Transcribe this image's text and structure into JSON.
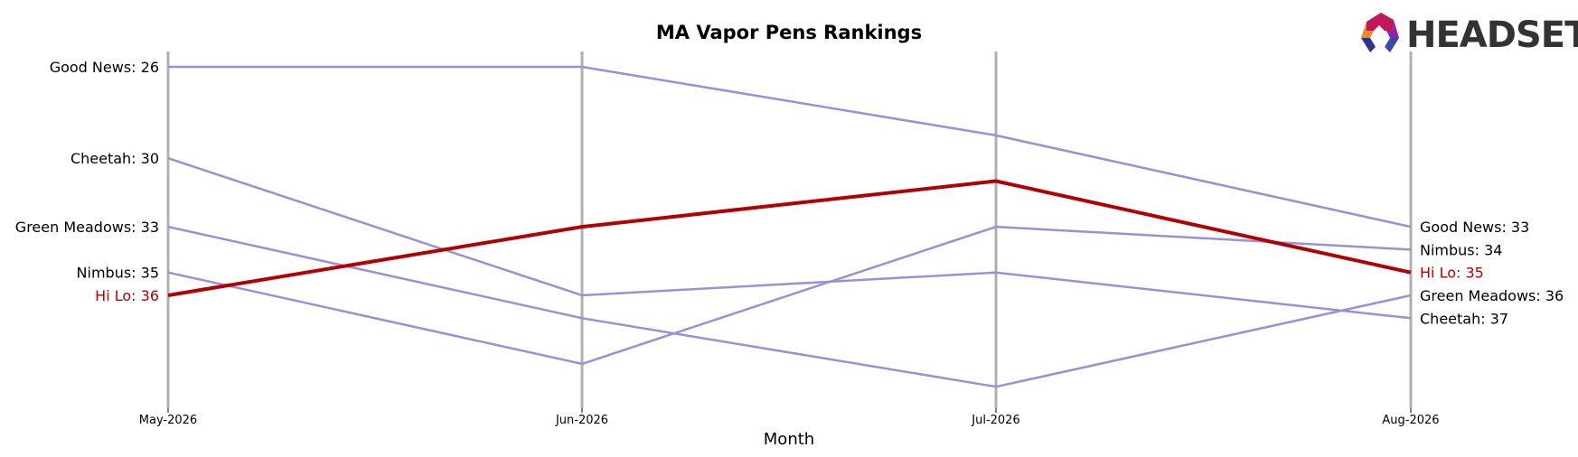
{
  "chart_data": {
    "type": "line",
    "title": "MA Vapor Pens Rankings",
    "xlabel": "Month",
    "ylabel": "",
    "categories": [
      "May-2026",
      "Jun-2026",
      "Jul-2026",
      "Aug-2026"
    ],
    "y_inverted": true,
    "ylim": [
      41,
      25
    ],
    "grid": "vertical lines at each month",
    "series": [
      {
        "name": "Good News",
        "values": [
          26,
          26,
          29,
          33
        ],
        "color": "#9b8fdb",
        "highlight": false,
        "start_label": "Good News: 26",
        "end_label": "Good News: 33"
      },
      {
        "name": "Cheetah",
        "values": [
          30,
          36,
          35,
          37
        ],
        "color": "#9b8fdb",
        "highlight": false,
        "start_label": "Cheetah: 30",
        "end_label": "Cheetah: 37"
      },
      {
        "name": "Green Meadows",
        "values": [
          33,
          37,
          40,
          36
        ],
        "color": "#9b8fdb",
        "highlight": false,
        "start_label": "Green Meadows: 33",
        "end_label": "Green Meadows: 36"
      },
      {
        "name": "Nimbus",
        "values": [
          35,
          39,
          33,
          34
        ],
        "color": "#9b8fdb",
        "highlight": false,
        "start_label": "Nimbus: 35",
        "end_label": "Nimbus: 34"
      },
      {
        "name": "Hi Lo",
        "values": [
          36,
          33,
          31,
          35
        ],
        "color": "#b30000",
        "highlight": true,
        "start_label": "Hi Lo: 36",
        "end_label": "Hi Lo: 35"
      }
    ]
  },
  "logo": {
    "text": "HEADSET"
  }
}
